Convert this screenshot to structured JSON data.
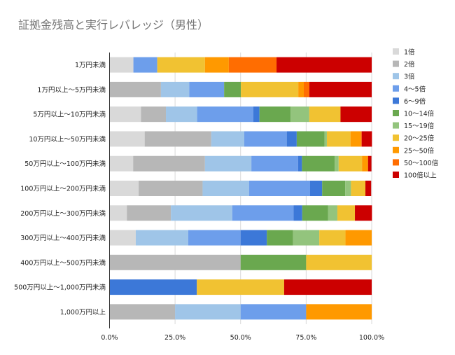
{
  "chart_data": {
    "type": "bar",
    "orientation": "horizontal",
    "stacked": "percent",
    "title": "証拠金残高と実行レバレッジ（男性）",
    "xlabel": "",
    "ylabel": "",
    "xlim": [
      0,
      100
    ],
    "x_tick_labels": [
      "0.0%",
      "25.0%",
      "50.0%",
      "75.0%",
      "100.0%"
    ],
    "grid": true,
    "legend_position": "right",
    "categories": [
      "1万円未満",
      "1万円以上～5万円未満",
      "5万円以上～10万円未満",
      "10万円以上～50万円未満",
      "50万円以上～100万円未満",
      "100万円以上～200万円未満",
      "200万円以上～300万円未満",
      "300万円以上～400万円未満",
      "400万円以上～500万円未満",
      "500万円以上～1,000万円未満",
      "1,000万円以上"
    ],
    "series": [
      {
        "name": "1倍",
        "color": "#d9d9d9",
        "values": [
          9.1,
          0,
          12.0,
          13.4,
          9.0,
          11.1,
          6.6,
          10,
          0,
          0,
          0
        ]
      },
      {
        "name": "2倍",
        "color": "#b7b7b7",
        "values": [
          0,
          19.6,
          9.5,
          25.4,
          27.4,
          24.4,
          16.8,
          0,
          50,
          0,
          25
        ]
      },
      {
        "name": "3倍",
        "color": "#9fc5e8",
        "values": [
          0,
          10.8,
          11.9,
          12.6,
          17.7,
          17.7,
          23.4,
          20,
          0,
          0,
          25
        ]
      },
      {
        "name": "4～5倍",
        "color": "#6d9eeb",
        "values": [
          9.1,
          13.3,
          21.4,
          16.2,
          17.8,
          23.3,
          23.4,
          20,
          0,
          0,
          25
        ]
      },
      {
        "name": "6～9倍",
        "color": "#3c78d8",
        "values": [
          0,
          0,
          2.4,
          3.8,
          1.5,
          4.6,
          3.3,
          10,
          0,
          33.3,
          0
        ]
      },
      {
        "name": "10～14倍",
        "color": "#6aa84f",
        "values": [
          0,
          6.4,
          11.9,
          10.6,
          12.5,
          8.8,
          9.9,
          10,
          25,
          0,
          0
        ]
      },
      {
        "name": "15～19倍",
        "color": "#93c47d",
        "values": [
          0,
          0,
          7.1,
          0.9,
          1.5,
          2.2,
          3.5,
          10,
          0,
          0,
          0
        ]
      },
      {
        "name": "20～25倍",
        "color": "#f1c232",
        "values": [
          18.2,
          21.9,
          11.9,
          9.0,
          8.9,
          5.5,
          6.7,
          10,
          25,
          33.3,
          0
        ]
      },
      {
        "name": "25～50倍",
        "color": "#ff9900",
        "values": [
          9.1,
          2.1,
          0,
          4.0,
          2.3,
          0,
          0,
          10,
          0,
          0,
          25
        ]
      },
      {
        "name": "50～100倍",
        "color": "#ff6d01",
        "values": [
          18.2,
          2.1,
          0,
          0.3,
          0,
          0,
          0,
          0,
          0,
          0,
          0
        ]
      },
      {
        "name": "100倍以上",
        "color": "#cc0000",
        "values": [
          36.3,
          23.8,
          11.9,
          3.9,
          1.3,
          2.2,
          6.5,
          0,
          0,
          33.4,
          0
        ]
      }
    ]
  }
}
